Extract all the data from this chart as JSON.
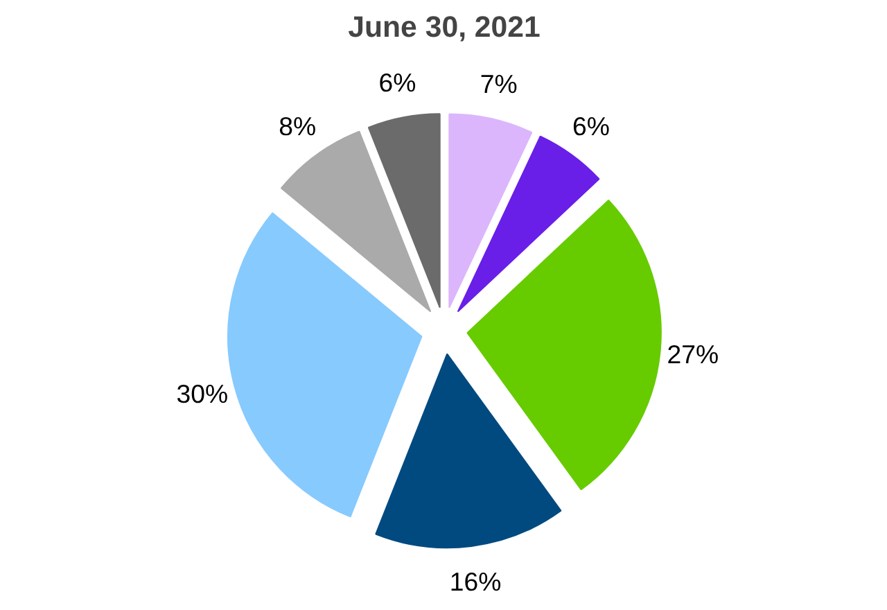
{
  "chart_data": {
    "type": "pie",
    "title": "June 30, 2021",
    "categories": [
      null,
      null,
      null,
      null,
      null,
      null,
      null
    ],
    "values": [
      7,
      6,
      27,
      16,
      30,
      8,
      6
    ],
    "colors": [
      "#dcb6fc",
      "#6a1fe8",
      "#66cc00",
      "#004a80",
      "#87cafe",
      "#aaaaaa",
      "#6b6b6b"
    ],
    "value_labels": [
      "7%",
      "6%",
      "27%",
      "16%",
      "30%",
      "8%",
      "6%"
    ]
  }
}
